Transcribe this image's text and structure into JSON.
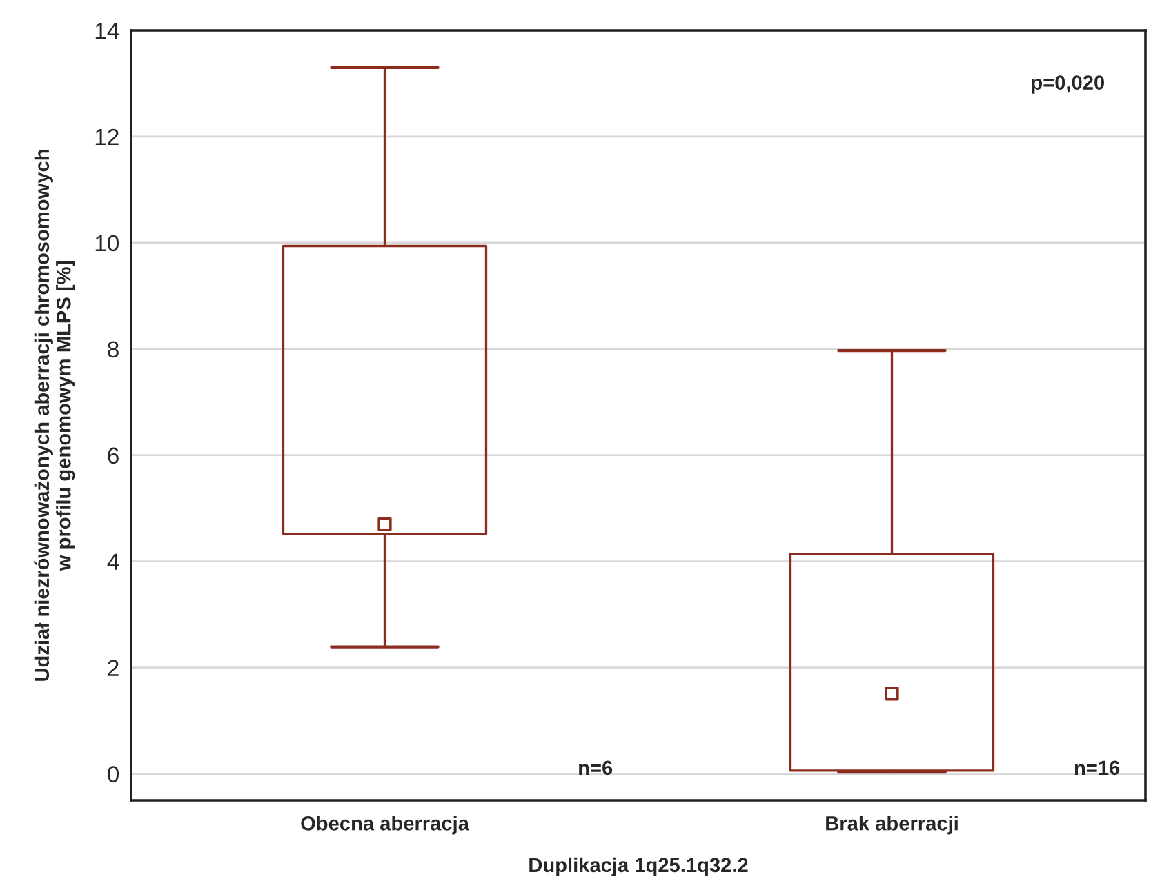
{
  "chart_data": {
    "type": "box",
    "xlabel": "Duplikacja 1q25.1q32.2",
    "ylabel": "Udział niezrównoważonych aberracji chromosomowych\nw profilu genomowym MLPS [%]",
    "categories": [
      "Obecna aberracja",
      "Brak aberracji"
    ],
    "boxes": [
      {
        "low": 2.39,
        "q1": 4.52,
        "median": 4.7,
        "q3": 9.94,
        "high": 13.3
      },
      {
        "low": 0.03,
        "q1": 0.06,
        "median": 1.51,
        "q3": 4.14,
        "high": 7.97
      }
    ],
    "color": "#8b2c1e",
    "marker": "square",
    "ylim": [
      -0.5,
      14
    ],
    "yticks": [
      0,
      2,
      4,
      6,
      8,
      10,
      12,
      14
    ],
    "grid": "y",
    "annotations": [
      "p=0,020",
      "n=6",
      "n=16"
    ]
  }
}
